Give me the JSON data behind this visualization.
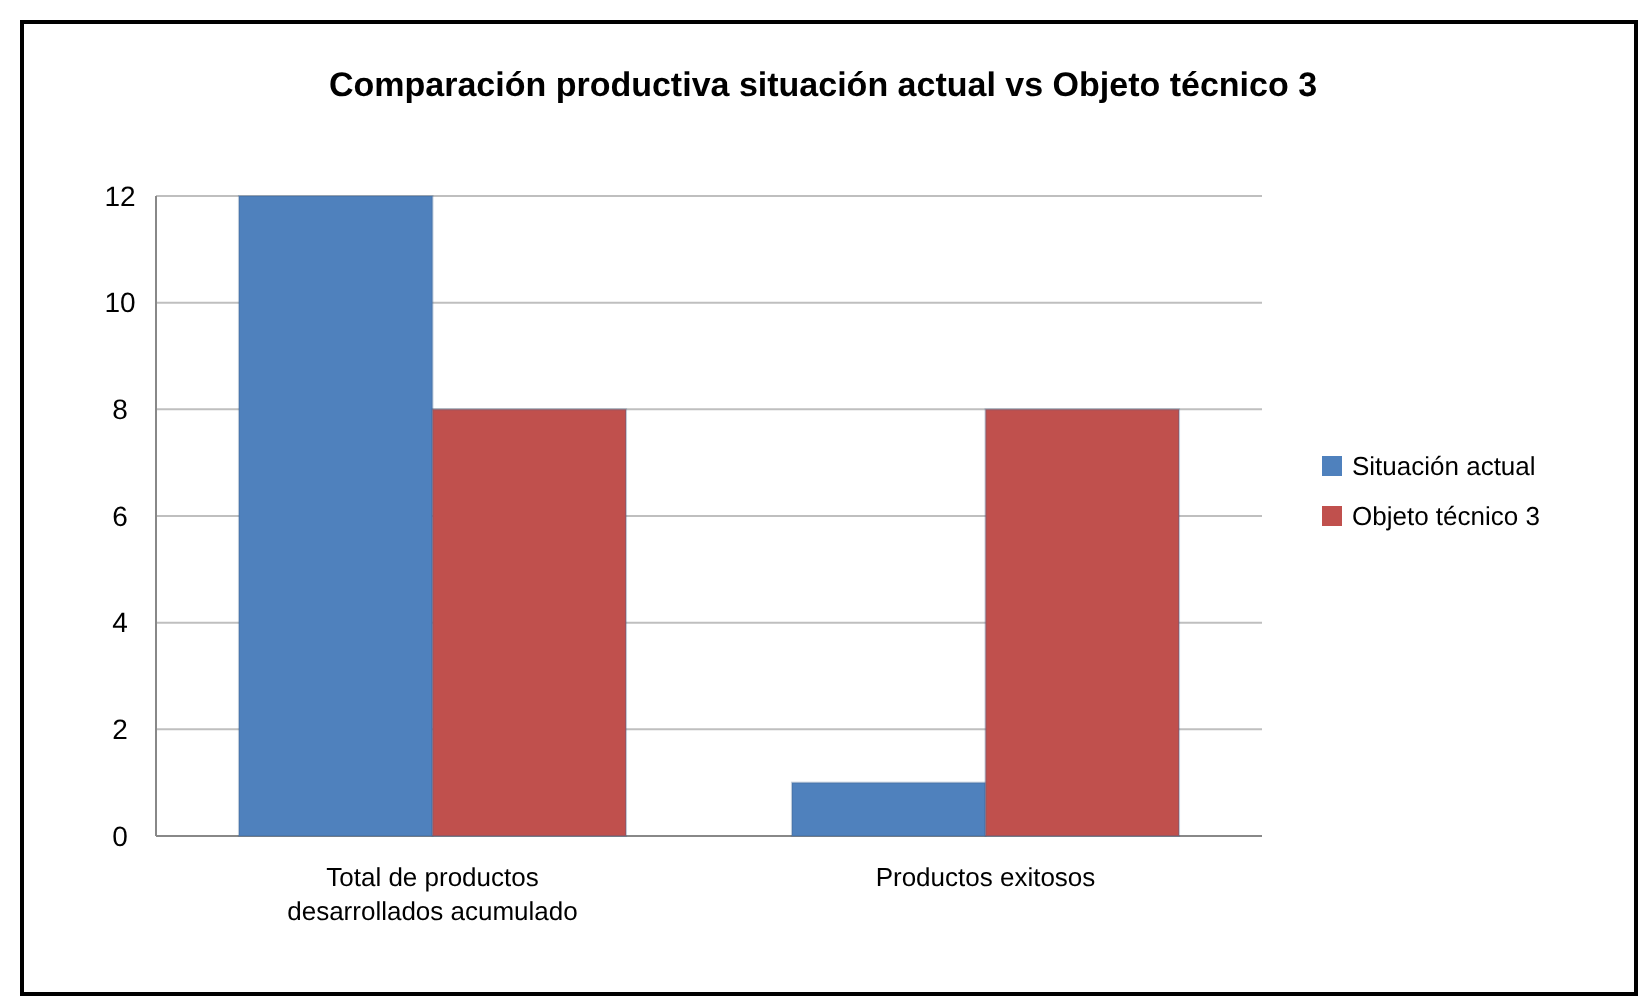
{
  "chart_data": {
    "type": "bar",
    "title": "Comparación productiva situación actual vs Objeto técnico 3",
    "categories": [
      "Total de productos desarrollados acumulado",
      "Productos exitosos"
    ],
    "series": [
      {
        "name": "Situación actual",
        "color": "#4f81bd",
        "values": [
          12,
          1
        ]
      },
      {
        "name": "Objeto técnico 3",
        "color": "#c0504d",
        "values": [
          8,
          8
        ]
      }
    ],
    "ylim": [
      0,
      12
    ],
    "yticks": [
      0,
      2,
      4,
      6,
      8,
      10,
      12
    ],
    "grid": true,
    "legend": "right"
  }
}
